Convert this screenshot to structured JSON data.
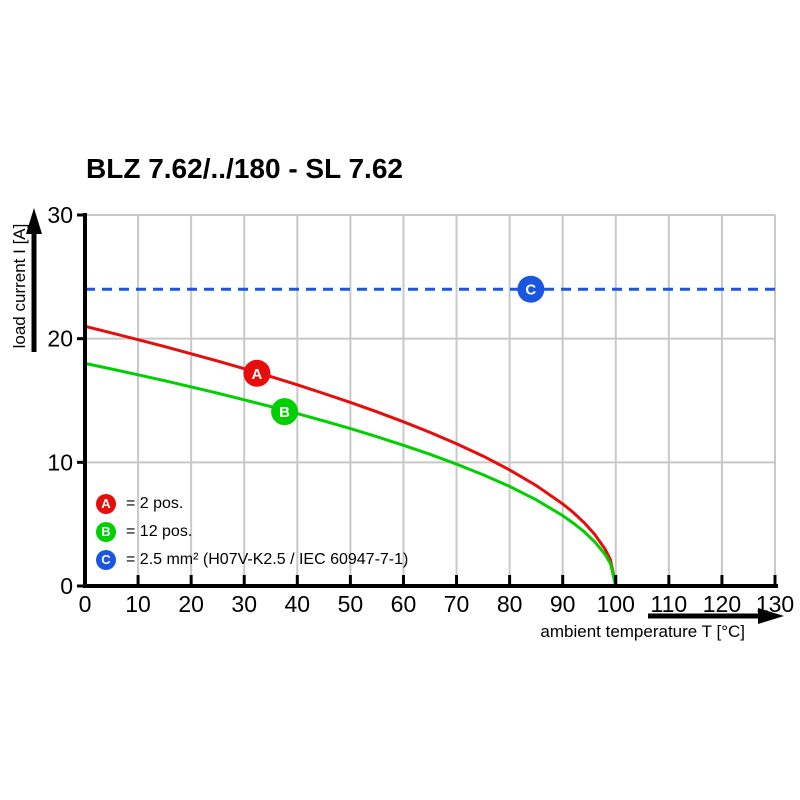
{
  "chart_data": {
    "type": "line",
    "title": "BLZ 7.62/../180 - SL 7.62",
    "xlabel": "ambient temperature T [°C]",
    "ylabel": "load current I [A]",
    "xlim": [
      0,
      130
    ],
    "ylim": [
      0,
      30
    ],
    "xticks": [
      0,
      10,
      20,
      30,
      40,
      50,
      60,
      70,
      80,
      90,
      100,
      110,
      120,
      130
    ],
    "yticks": [
      0,
      10,
      20,
      30
    ],
    "grid": true,
    "colors": {
      "grid": "#c8c8c8",
      "axis": "#000000",
      "background": "#ffffff"
    },
    "series": [
      {
        "name": "A",
        "label": "2 pos.",
        "color": "#e60d0d",
        "style": "solid",
        "points": [
          [
            0,
            21.0
          ],
          [
            5,
            20.47
          ],
          [
            10,
            19.92
          ],
          [
            15,
            19.36
          ],
          [
            20,
            18.78
          ],
          [
            25,
            18.19
          ],
          [
            30,
            17.57
          ],
          [
            35,
            16.93
          ],
          [
            40,
            16.27
          ],
          [
            45,
            15.57
          ],
          [
            50,
            14.85
          ],
          [
            55,
            14.09
          ],
          [
            60,
            13.28
          ],
          [
            65,
            12.42
          ],
          [
            70,
            11.5
          ],
          [
            75,
            10.5
          ],
          [
            80,
            9.39
          ],
          [
            85,
            8.13
          ],
          [
            90,
            6.64
          ],
          [
            92,
            5.94
          ],
          [
            94,
            5.14
          ],
          [
            96,
            4.2
          ],
          [
            98,
            2.97
          ],
          [
            99,
            2.1
          ],
          [
            100,
            0
          ]
        ]
      },
      {
        "name": "B",
        "label": "12 pos.",
        "color": "#00cf00",
        "style": "solid",
        "points": [
          [
            0,
            18.0
          ],
          [
            5,
            17.55
          ],
          [
            10,
            17.08
          ],
          [
            15,
            16.6
          ],
          [
            20,
            16.1
          ],
          [
            25,
            15.59
          ],
          [
            30,
            15.06
          ],
          [
            35,
            14.51
          ],
          [
            40,
            13.94
          ],
          [
            45,
            13.35
          ],
          [
            50,
            12.73
          ],
          [
            55,
            12.07
          ],
          [
            60,
            11.38
          ],
          [
            65,
            10.65
          ],
          [
            70,
            9.86
          ],
          [
            75,
            9.0
          ],
          [
            80,
            8.05
          ],
          [
            85,
            6.97
          ],
          [
            90,
            5.69
          ],
          [
            92,
            5.09
          ],
          [
            94,
            4.41
          ],
          [
            96,
            3.6
          ],
          [
            98,
            2.55
          ],
          [
            99,
            1.8
          ],
          [
            100,
            0
          ]
        ]
      },
      {
        "name": "C",
        "label": "2.5 mm² (H07V-K2.5 / IEC 60947-7-1)",
        "color": "#1a56e0",
        "style": "dashed",
        "points": [
          [
            0,
            24
          ],
          [
            130,
            24
          ]
        ]
      }
    ],
    "markers": [
      {
        "series": "A",
        "t": 32.4,
        "i": 17.2
      },
      {
        "series": "B",
        "t": 37.6,
        "i": 14.1
      },
      {
        "series": "C",
        "t": 84,
        "i": 24
      }
    ],
    "legend": {
      "position": "inside-bottom-left",
      "entries": [
        {
          "letter": "A",
          "label": "= 2 pos."
        },
        {
          "letter": "B",
          "label": "= 12 pos."
        },
        {
          "letter": "C",
          "label": "= 2.5 mm² (H07V-K2.5 / IEC 60947-7-1)"
        }
      ]
    }
  }
}
